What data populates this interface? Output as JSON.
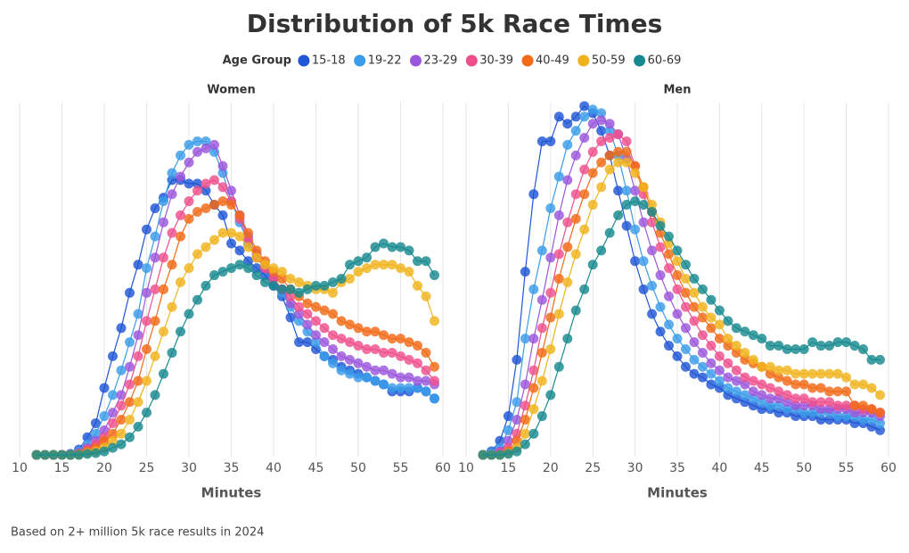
{
  "title": "Distribution of 5k Race Times",
  "legend_title": "Age Group",
  "note": "Based on 2+ million 5k race results in 2024",
  "chart_data": [
    {
      "type": "line",
      "subtitle": "Women",
      "xlabel": "Minutes",
      "xlim": [
        10,
        60
      ],
      "xticks": [
        10,
        15,
        20,
        25,
        30,
        35,
        40,
        45,
        50,
        55,
        60
      ],
      "ylim": [
        0,
        100
      ],
      "grid": true,
      "x": [
        12,
        13,
        14,
        15,
        16,
        17,
        18,
        19,
        20,
        21,
        22,
        23,
        24,
        25,
        26,
        27,
        28,
        29,
        30,
        31,
        32,
        33,
        34,
        35,
        36,
        37,
        38,
        39,
        40,
        41,
        42,
        43,
        44,
        45,
        46,
        47,
        48,
        49,
        50,
        51,
        52,
        53,
        54,
        55,
        56,
        57,
        58,
        59
      ],
      "series": [
        {
          "name": "15-18",
          "color": "#1f55d6",
          "values": [
            0,
            0,
            0,
            0,
            0.3,
            1.5,
            5,
            9,
            19,
            28,
            36,
            46,
            54,
            64,
            70,
            73,
            78,
            78,
            77,
            77,
            75,
            71,
            68,
            60,
            58,
            55,
            53,
            51,
            48,
            45,
            39,
            32,
            32,
            30,
            28,
            27,
            25,
            24,
            23,
            22,
            21,
            20,
            18,
            18,
            18,
            19,
            18,
            16
          ]
        },
        {
          "name": "19-22",
          "color": "#3a9ce9",
          "values": [
            0,
            0,
            0,
            0,
            0,
            1,
            3,
            6,
            11,
            17,
            24,
            32,
            40,
            53,
            62,
            72,
            80,
            85,
            88,
            89,
            89,
            86,
            80,
            72,
            66,
            60,
            56,
            53,
            50,
            46,
            42,
            38,
            35,
            32,
            28,
            26,
            24,
            23,
            22,
            22,
            21,
            20,
            19,
            19,
            19,
            19,
            18,
            16
          ]
        },
        {
          "name": "23-29",
          "color": "#9b57dc",
          "values": [
            0,
            0,
            0,
            0,
            0,
            0.5,
            2,
            4,
            7,
            12,
            17,
            25,
            34,
            46,
            56,
            66,
            74,
            79,
            83,
            86,
            87,
            88,
            82,
            75,
            68,
            62,
            57,
            53,
            50,
            47,
            43,
            40,
            37,
            34,
            32,
            30,
            28,
            27,
            26,
            25,
            24,
            24,
            23,
            22,
            22,
            21,
            21,
            20
          ]
        },
        {
          "name": "30-39",
          "color": "#ee4f8c",
          "values": [
            0,
            0,
            0,
            0,
            0,
            0.3,
            1.5,
            3,
            5,
            9,
            14,
            20,
            28,
            38,
            47,
            56,
            63,
            68,
            72,
            75,
            77,
            78,
            76,
            72,
            67,
            61,
            56,
            53,
            50,
            47,
            45,
            42,
            40,
            38,
            36,
            34,
            33,
            32,
            31,
            30,
            30,
            29,
            29,
            28,
            27,
            26,
            24,
            21
          ]
        },
        {
          "name": "40-49",
          "color": "#f26a17",
          "values": [
            0,
            0,
            0,
            0,
            0,
            0.2,
            1,
            2,
            4,
            6,
            10,
            15,
            21,
            30,
            38,
            47,
            54,
            62,
            67,
            69,
            70,
            71,
            72,
            71,
            68,
            63,
            58,
            55,
            52,
            50,
            47,
            45,
            43,
            42,
            41,
            40,
            38,
            37,
            36,
            35,
            35,
            34,
            33,
            33,
            32,
            31,
            29,
            25
          ]
        },
        {
          "name": "50-59",
          "color": "#f0b31c",
          "values": [
            0,
            0,
            0,
            0,
            0,
            0,
            0.5,
            1,
            2,
            4,
            6,
            10,
            15,
            21,
            28,
            35,
            42,
            49,
            53,
            57,
            59,
            61,
            63,
            63,
            62,
            59,
            56,
            54,
            53,
            52,
            50,
            49,
            48,
            47,
            47,
            46,
            49,
            50,
            52,
            53,
            54,
            54,
            54,
            53,
            52,
            48,
            45,
            38
          ]
        },
        {
          "name": "60-69",
          "color": "#178a8f",
          "values": [
            0,
            0,
            0,
            0,
            0,
            0,
            0.3,
            0.5,
            1,
            2,
            3,
            5,
            8,
            12,
            17,
            23,
            29,
            35,
            40,
            44,
            48,
            51,
            52,
            53,
            54,
            53,
            51,
            49,
            48,
            47,
            47,
            46,
            47,
            48,
            48,
            49,
            50,
            54,
            55,
            56,
            59,
            60,
            59,
            59,
            58,
            55,
            55,
            51
          ]
        }
      ]
    },
    {
      "type": "line",
      "subtitle": "Men",
      "xlabel": "Minutes",
      "xlim": [
        10,
        60
      ],
      "xticks": [
        10,
        15,
        20,
        25,
        30,
        35,
        40,
        45,
        50,
        55,
        60
      ],
      "ylim": [
        0,
        100
      ],
      "grid": true,
      "x": [
        12,
        13,
        14,
        15,
        16,
        17,
        18,
        19,
        20,
        21,
        22,
        23,
        24,
        25,
        26,
        27,
        28,
        29,
        30,
        31,
        32,
        33,
        34,
        35,
        36,
        37,
        38,
        39,
        40,
        41,
        42,
        43,
        44,
        45,
        46,
        47,
        48,
        49,
        50,
        51,
        52,
        53,
        54,
        55,
        56,
        57,
        58,
        59
      ],
      "series": [
        {
          "name": "15-18",
          "color": "#1f55d6",
          "values": [
            0,
            1,
            4,
            11,
            27,
            52,
            74,
            89,
            89,
            96,
            94,
            96,
            99,
            97,
            92,
            85,
            75,
            65,
            55,
            47,
            40,
            35,
            31,
            28,
            25,
            23,
            22,
            20,
            19,
            17,
            16,
            15,
            14,
            13,
            13,
            12,
            12,
            11,
            11,
            11,
            10,
            10,
            10,
            10,
            9,
            9,
            8,
            7
          ]
        },
        {
          "name": "19-22",
          "color": "#3a9ce9",
          "values": [
            0,
            0.5,
            2,
            7,
            15,
            33,
            47,
            58,
            70,
            79,
            88,
            92,
            96,
            98,
            97,
            92,
            85,
            75,
            64,
            55,
            48,
            42,
            37,
            33,
            30,
            27,
            25,
            23,
            21,
            19,
            18,
            17,
            16,
            15,
            14,
            14,
            13,
            13,
            12,
            12,
            12,
            12,
            11,
            11,
            11,
            10,
            10,
            9
          ]
        },
        {
          "name": "23-29",
          "color": "#9b57dc",
          "values": [
            0,
            0,
            1,
            4,
            10,
            20,
            33,
            44,
            56,
            68,
            78,
            85,
            90,
            94,
            95,
            94,
            91,
            84,
            75,
            66,
            58,
            51,
            45,
            40,
            36,
            32,
            29,
            26,
            24,
            22,
            21,
            20,
            18,
            17,
            16,
            16,
            15,
            14,
            14,
            14,
            13,
            13,
            13,
            13,
            12,
            12,
            12,
            11
          ]
        },
        {
          "name": "30-39",
          "color": "#ee4f8c",
          "values": [
            0,
            0,
            0.5,
            2,
            6,
            14,
            24,
            36,
            46,
            57,
            66,
            74,
            81,
            86,
            89,
            90,
            91,
            89,
            82,
            74,
            66,
            59,
            53,
            47,
            42,
            38,
            34,
            31,
            28,
            26,
            24,
            22,
            21,
            20,
            19,
            18,
            17,
            16,
            16,
            15,
            15,
            15,
            14,
            14,
            14,
            13,
            13,
            12
          ]
        },
        {
          "name": "40-49",
          "color": "#f26a17",
          "values": [
            0,
            0,
            0,
            1,
            4,
            10,
            19,
            29,
            39,
            50,
            59,
            67,
            74,
            80,
            83,
            85,
            86,
            86,
            82,
            76,
            69,
            63,
            57,
            51,
            46,
            42,
            39,
            36,
            33,
            31,
            29,
            27,
            26,
            25,
            23,
            22,
            21,
            20,
            20,
            19,
            19,
            18,
            18,
            18,
            14,
            14,
            13,
            12
          ]
        },
        {
          "name": "50-59",
          "color": "#f0b31c",
          "values": [
            0,
            0,
            0,
            0.5,
            2,
            6,
            13,
            21,
            30,
            40,
            49,
            57,
            64,
            71,
            76,
            81,
            83,
            83,
            80,
            76,
            71,
            66,
            60,
            55,
            50,
            46,
            42,
            39,
            37,
            33,
            31,
            29,
            27,
            25,
            25,
            24,
            24,
            23,
            23,
            23,
            23,
            23,
            23,
            22,
            20,
            20,
            19,
            17
          ]
        },
        {
          "name": "60-69",
          "color": "#178a8f",
          "values": [
            0,
            0,
            0,
            0.3,
            1,
            3,
            6,
            11,
            17,
            25,
            33,
            41,
            47,
            54,
            58,
            63,
            68,
            71,
            72,
            71,
            69,
            65,
            62,
            58,
            54,
            50,
            47,
            44,
            41,
            38,
            36,
            35,
            34,
            33,
            31,
            31,
            30,
            30,
            30,
            32,
            31,
            31,
            32,
            32,
            31,
            30,
            27,
            27
          ]
        }
      ]
    }
  ]
}
